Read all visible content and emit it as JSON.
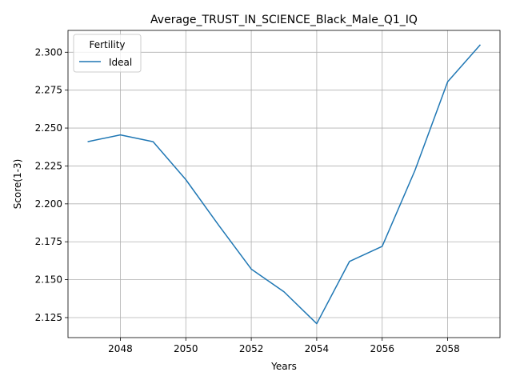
{
  "chart_data": {
    "type": "line",
    "title": "Average_TRUST_IN_SCIENCE_Black_Male_Q1_IQ",
    "xlabel": "Years",
    "ylabel": "Score(1-3)",
    "xlim": [
      2046.4,
      2059.6
    ],
    "ylim": [
      2.1118,
      2.3144
    ],
    "x_ticks": [
      2048,
      2050,
      2052,
      2054,
      2056,
      2058
    ],
    "y_ticks": [
      2.125,
      2.15,
      2.175,
      2.2,
      2.225,
      2.25,
      2.275,
      2.3
    ],
    "grid": true,
    "legend": {
      "title": "Fertility",
      "placement": "top-left"
    },
    "series": [
      {
        "name": "Ideal",
        "color": "#1f77b4",
        "x": [
          2047,
          2048,
          2049,
          2050,
          2051,
          2052,
          2053,
          2054,
          2055,
          2056,
          2057,
          2058,
          2059
        ],
        "values": [
          2.241,
          2.2455,
          2.241,
          2.216,
          2.186,
          2.157,
          2.142,
          2.121,
          2.162,
          2.172,
          2.222,
          2.2805,
          2.305
        ]
      }
    ]
  }
}
